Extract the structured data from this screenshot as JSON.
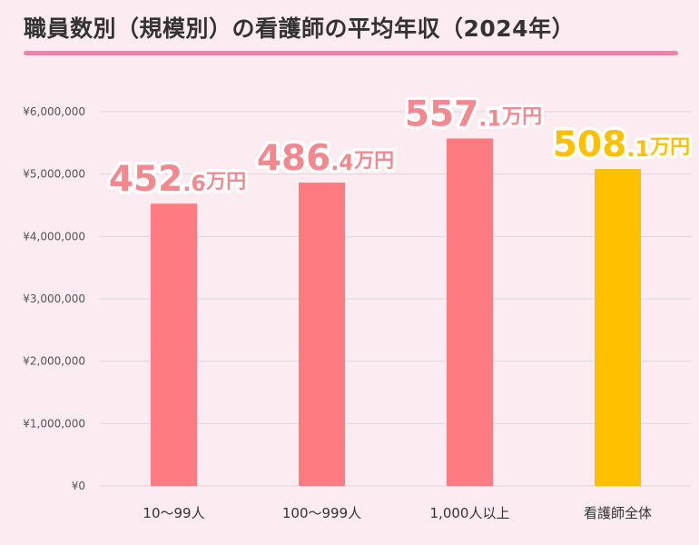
{
  "title": "職員数別（規模別）の看護師の平均年収（2024年）",
  "colors": {
    "background": "#fcebf0",
    "title_underline": "#e985a9",
    "bar_default": "#ff7b82",
    "bar_highlight": "#ffc000",
    "label_default": "#f4888f",
    "label_highlight": "#ffc000",
    "grid": "#d9d9d9"
  },
  "chart_data": {
    "type": "bar",
    "title": "職員数別（規模別）の看護師の平均年収（2024年）",
    "xlabel": "",
    "ylabel": "",
    "categories": [
      "10〜99人",
      "100〜999人",
      "1,000人以上",
      "看護師全体"
    ],
    "values": [
      4526000,
      4864000,
      5571000,
      5081000
    ],
    "ylim": [
      0,
      6000000
    ],
    "yticks": [
      0,
      1000000,
      2000000,
      3000000,
      4000000,
      5000000,
      6000000
    ],
    "ytick_labels": [
      "¥0",
      "¥1,000,000",
      "¥2,000,000",
      "¥3,000,000",
      "¥4,000,000",
      "¥5,000,000",
      "¥6,000,000"
    ],
    "data_labels": [
      {
        "main": "452",
        "decimal": ".6",
        "unit": "万円",
        "highlight": false
      },
      {
        "main": "486",
        "decimal": ".4",
        "unit": "万円",
        "highlight": false
      },
      {
        "main": "557",
        "decimal": ".1",
        "unit": "万円",
        "highlight": false
      },
      {
        "main": "508",
        "decimal": ".1",
        "unit": "万円",
        "highlight": true
      }
    ],
    "grid": true,
    "legend": "none"
  }
}
